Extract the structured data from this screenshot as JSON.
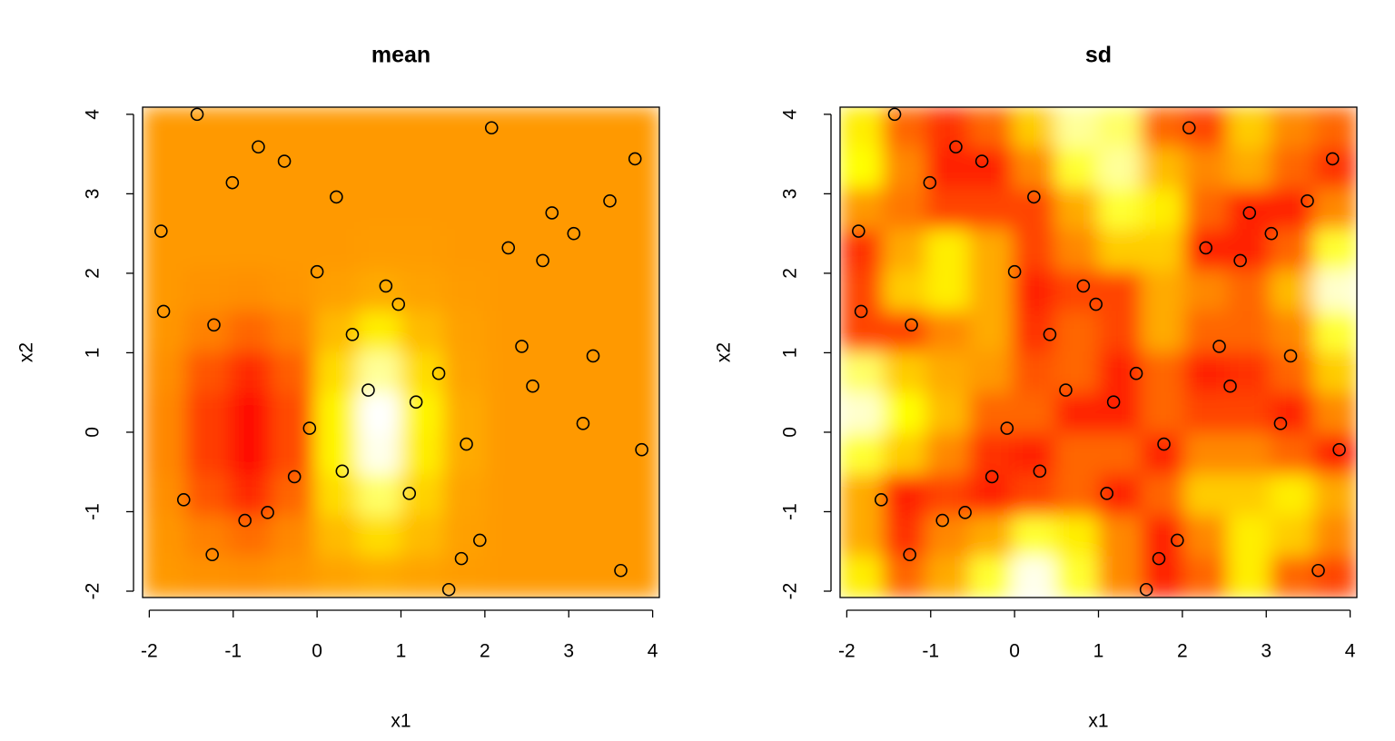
{
  "chart_data": [
    {
      "type": "heatmap",
      "title": "mean",
      "xlabel": "x1",
      "ylabel": "x2",
      "xlim": [
        -2.08,
        4.08
      ],
      "ylim": [
        -2.08,
        4.09
      ],
      "xticks": [
        -2,
        -1,
        0,
        1,
        2,
        3,
        4
      ],
      "yticks": [
        -2,
        -1,
        0,
        1,
        2,
        3,
        4
      ],
      "colors": [
        "#ff0000",
        "#ffff00",
        "#ffffff"
      ],
      "color_stops": [
        0,
        0.75,
        1
      ],
      "z": [
        [
          0.45,
          0.45,
          0.45,
          0.45,
          0.45,
          0.45,
          0.45,
          0.45,
          0.45,
          0.45,
          0.45,
          0.45
        ],
        [
          0.45,
          0.45,
          0.45,
          0.45,
          0.45,
          0.45,
          0.45,
          0.45,
          0.45,
          0.45,
          0.45,
          0.45
        ],
        [
          0.45,
          0.45,
          0.45,
          0.45,
          0.45,
          0.45,
          0.45,
          0.45,
          0.45,
          0.45,
          0.45,
          0.45
        ],
        [
          0.45,
          0.45,
          0.45,
          0.45,
          0.45,
          0.46,
          0.46,
          0.45,
          0.45,
          0.45,
          0.45,
          0.45
        ],
        [
          0.45,
          0.43,
          0.42,
          0.44,
          0.47,
          0.5,
          0.48,
          0.46,
          0.45,
          0.45,
          0.45,
          0.45
        ],
        [
          0.44,
          0.38,
          0.3,
          0.38,
          0.55,
          0.7,
          0.55,
          0.47,
          0.45,
          0.45,
          0.45,
          0.45
        ],
        [
          0.42,
          0.25,
          0.12,
          0.28,
          0.65,
          0.9,
          0.65,
          0.48,
          0.45,
          0.45,
          0.45,
          0.45
        ],
        [
          0.4,
          0.18,
          0.02,
          0.22,
          0.72,
          1.0,
          0.72,
          0.5,
          0.45,
          0.45,
          0.45,
          0.45
        ],
        [
          0.4,
          0.18,
          0.02,
          0.22,
          0.72,
          0.98,
          0.7,
          0.5,
          0.45,
          0.45,
          0.45,
          0.45
        ],
        [
          0.42,
          0.25,
          0.12,
          0.3,
          0.65,
          0.85,
          0.62,
          0.48,
          0.45,
          0.45,
          0.45,
          0.45
        ],
        [
          0.44,
          0.38,
          0.32,
          0.4,
          0.55,
          0.65,
          0.55,
          0.47,
          0.45,
          0.45,
          0.45,
          0.45
        ],
        [
          0.45,
          0.43,
          0.42,
          0.44,
          0.48,
          0.5,
          0.48,
          0.46,
          0.45,
          0.45,
          0.45,
          0.45
        ]
      ],
      "points": {
        "x": [
          -1.43,
          -0.7,
          -0.39,
          -1.01,
          0.23,
          2.08,
          3.79,
          3.49,
          2.8,
          3.06,
          2.28,
          2.69,
          -1.86,
          0.0,
          0.82,
          0.97,
          -1.83,
          -1.23,
          0.42,
          2.44,
          3.29,
          1.45,
          0.61,
          2.57,
          1.18,
          -0.09,
          3.17,
          1.78,
          3.87,
          0.3,
          -0.27,
          1.1,
          -1.59,
          -0.59,
          -0.86,
          1.94,
          1.72,
          -1.25,
          3.62,
          1.57
        ],
        "y": [
          4.0,
          3.59,
          3.41,
          3.14,
          2.96,
          3.83,
          3.44,
          2.91,
          2.76,
          2.5,
          2.32,
          2.16,
          2.53,
          2.02,
          1.84,
          1.61,
          1.52,
          1.35,
          1.23,
          1.08,
          0.96,
          0.74,
          0.53,
          0.58,
          0.38,
          0.05,
          0.11,
          -0.15,
          -0.22,
          -0.49,
          -0.56,
          -0.77,
          -0.85,
          -1.01,
          -1.11,
          -1.36,
          -1.59,
          -1.54,
          -1.74,
          -1.98
        ]
      }
    },
    {
      "type": "heatmap",
      "title": "sd",
      "xlabel": "x1",
      "ylabel": "x2",
      "xlim": [
        -2.08,
        4.08
      ],
      "ylim": [
        -2.08,
        4.09
      ],
      "xticks": [
        -2,
        -1,
        0,
        1,
        2,
        3,
        4
      ],
      "yticks": [
        -2,
        -1,
        0,
        1,
        2,
        3,
        4
      ],
      "colors": [
        "#ff0000",
        "#ffff00",
        "#ffffff"
      ],
      "color_stops": [
        0,
        0.75,
        1
      ],
      "z": [
        [
          0.7,
          0.3,
          0.15,
          0.3,
          0.6,
          0.9,
          0.85,
          0.3,
          0.2,
          0.6,
          0.4,
          0.3
        ],
        [
          0.75,
          0.4,
          0.1,
          0.1,
          0.4,
          0.8,
          0.9,
          0.55,
          0.4,
          0.5,
          0.3,
          0.15
        ],
        [
          0.45,
          0.35,
          0.2,
          0.2,
          0.2,
          0.5,
          0.8,
          0.7,
          0.3,
          0.1,
          0.1,
          0.4
        ],
        [
          0.15,
          0.5,
          0.7,
          0.5,
          0.2,
          0.4,
          0.6,
          0.6,
          0.1,
          0.1,
          0.3,
          0.8
        ],
        [
          0.2,
          0.6,
          0.7,
          0.5,
          0.1,
          0.2,
          0.2,
          0.5,
          0.4,
          0.3,
          0.55,
          0.95
        ],
        [
          0.2,
          0.2,
          0.4,
          0.5,
          0.15,
          0.3,
          0.2,
          0.5,
          0.3,
          0.3,
          0.4,
          0.8
        ],
        [
          0.85,
          0.6,
          0.5,
          0.45,
          0.25,
          0.3,
          0.1,
          0.3,
          0.1,
          0.15,
          0.3,
          0.6
        ],
        [
          0.95,
          0.75,
          0.55,
          0.3,
          0.3,
          0.1,
          0.1,
          0.3,
          0.2,
          0.2,
          0.1,
          0.4
        ],
        [
          0.8,
          0.6,
          0.4,
          0.15,
          0.1,
          0.3,
          0.3,
          0.1,
          0.4,
          0.4,
          0.3,
          0.1
        ],
        [
          0.5,
          0.1,
          0.2,
          0.1,
          0.2,
          0.3,
          0.1,
          0.3,
          0.6,
          0.6,
          0.7,
          0.5
        ],
        [
          0.5,
          0.15,
          0.4,
          0.5,
          0.8,
          0.7,
          0.4,
          0.1,
          0.4,
          0.7,
          0.6,
          0.4
        ],
        [
          0.7,
          0.3,
          0.5,
          0.8,
          0.98,
          0.8,
          0.4,
          0.1,
          0.3,
          0.7,
          0.3,
          0.2
        ]
      ],
      "points": {
        "x": [
          -1.43,
          -0.7,
          -0.39,
          -1.01,
          0.23,
          2.08,
          3.79,
          3.49,
          2.8,
          3.06,
          2.28,
          2.69,
          -1.86,
          0.0,
          0.82,
          0.97,
          -1.83,
          -1.23,
          0.42,
          2.44,
          3.29,
          1.45,
          0.61,
          2.57,
          1.18,
          -0.09,
          3.17,
          1.78,
          3.87,
          0.3,
          -0.27,
          1.1,
          -1.59,
          -0.59,
          -0.86,
          1.94,
          1.72,
          -1.25,
          3.62,
          1.57
        ],
        "y": [
          4.0,
          3.59,
          3.41,
          3.14,
          2.96,
          3.83,
          3.44,
          2.91,
          2.76,
          2.5,
          2.32,
          2.16,
          2.53,
          2.02,
          1.84,
          1.61,
          1.52,
          1.35,
          1.23,
          1.08,
          0.96,
          0.74,
          0.53,
          0.58,
          0.38,
          0.05,
          0.11,
          -0.15,
          -0.22,
          -0.49,
          -0.56,
          -0.77,
          -0.85,
          -1.01,
          -1.11,
          -1.36,
          -1.59,
          -1.54,
          -1.74,
          -1.98
        ]
      }
    }
  ]
}
